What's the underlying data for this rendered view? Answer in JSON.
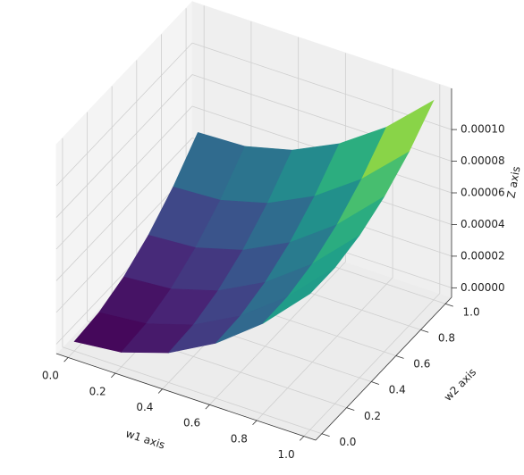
{
  "chart_data": {
    "type": "surface",
    "x_label": "w1 axis",
    "y_label": "w2 axis",
    "z_label": "Z axis",
    "colormap": "viridis",
    "x": [
      0,
      0.2,
      0.4,
      0.6,
      0.8,
      1
    ],
    "y": [
      0,
      0.2,
      0.4,
      0.6,
      0.8,
      1
    ],
    "z": [
      [
        0,
        3.2e-06,
        1.28e-05,
        2.88e-05,
        5.12e-05,
        8e-05
      ],
      [
        2e-06,
        4.8e-06,
        1.4e-05,
        2.96e-05,
        5.16e-05,
        8e-05
      ],
      [
        8e-06,
        1.04e-05,
        1.92e-05,
        3.44e-05,
        5.6e-05,
        8.4e-05
      ],
      [
        1.8e-05,
        2e-05,
        2.84e-05,
        4.32e-05,
        6.44e-05,
        9.2e-05
      ],
      [
        3.2e-05,
        3.36e-05,
        4.16e-05,
        5.6e-05,
        7.68e-05,
        0.000104
      ],
      [
        5e-05,
        5.12e-05,
        5.88e-05,
        7.28e-05,
        9.32e-05,
        0.00012
      ]
    ],
    "xlim": [
      -0.05,
      1.05
    ],
    "ylim": [
      -0.05,
      1.05
    ],
    "zlim": [
      -6e-06,
      0.000126
    ],
    "xticks": [
      {
        "value": 0,
        "label": "0.0"
      },
      {
        "value": 0.2,
        "label": "0.2"
      },
      {
        "value": 0.4,
        "label": "0.4"
      },
      {
        "value": 0.6,
        "label": "0.6"
      },
      {
        "value": 0.8,
        "label": "0.8"
      },
      {
        "value": 1,
        "label": "1.0"
      }
    ],
    "yticks": [
      {
        "value": 0,
        "label": "0.0"
      },
      {
        "value": 0.2,
        "label": "0.2"
      },
      {
        "value": 0.4,
        "label": "0.4"
      },
      {
        "value": 0.6,
        "label": "0.6"
      },
      {
        "value": 0.8,
        "label": "0.8"
      },
      {
        "value": 1,
        "label": "1.0"
      }
    ],
    "zticks": [
      {
        "value": 0,
        "label": "0.00000"
      },
      {
        "value": 2e-05,
        "label": "0.00002"
      },
      {
        "value": 4e-05,
        "label": "0.00004"
      },
      {
        "value": 6e-05,
        "label": "0.00006"
      },
      {
        "value": 8e-05,
        "label": "0.00008"
      },
      {
        "value": 0.0001,
        "label": "0.00010"
      }
    ],
    "grid": true
  }
}
